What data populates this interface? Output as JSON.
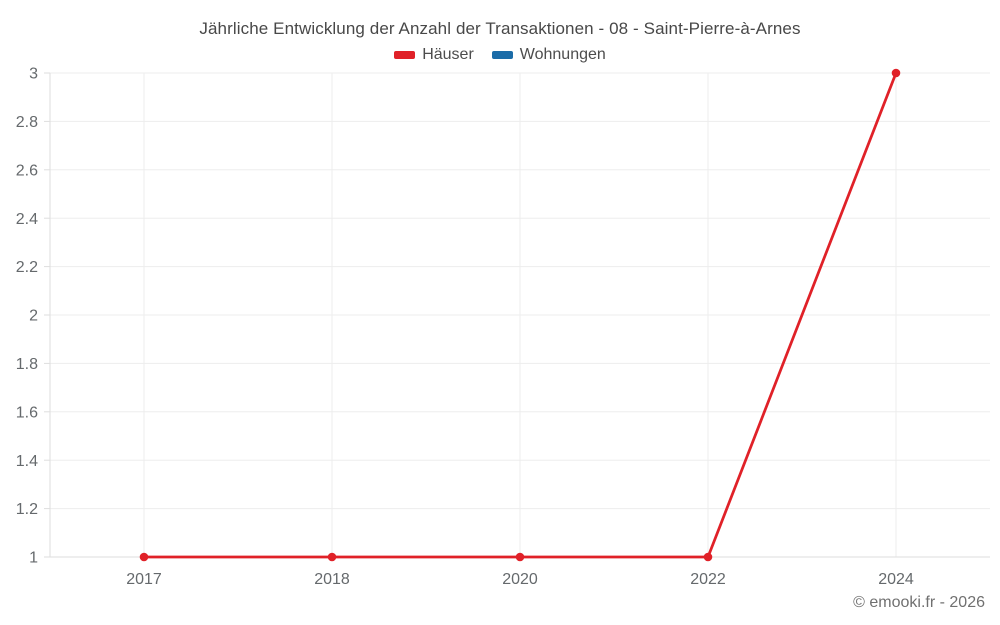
{
  "chart_data": {
    "type": "line",
    "title": "Jährliche Entwicklung der Anzahl der Transaktionen - 08 - Saint-Pierre-à-Arnes",
    "categories": [
      "2017",
      "2018",
      "2020",
      "2022",
      "2024"
    ],
    "series": [
      {
        "name": "Häuser",
        "color": "#e02128",
        "values": [
          1,
          1,
          1,
          1,
          3
        ]
      },
      {
        "name": "Wohnungen",
        "color": "#1b6ca8",
        "values": []
      }
    ],
    "xlabel": "",
    "ylabel": "",
    "ylim": [
      1,
      3
    ],
    "yticks": [
      1,
      1.2,
      1.4,
      1.6,
      1.8,
      2,
      2.2,
      2.4,
      2.6,
      2.8,
      3
    ],
    "grid": true,
    "legend_position": "top"
  },
  "footer": {
    "copyright": "© emooki.fr - 2026"
  }
}
